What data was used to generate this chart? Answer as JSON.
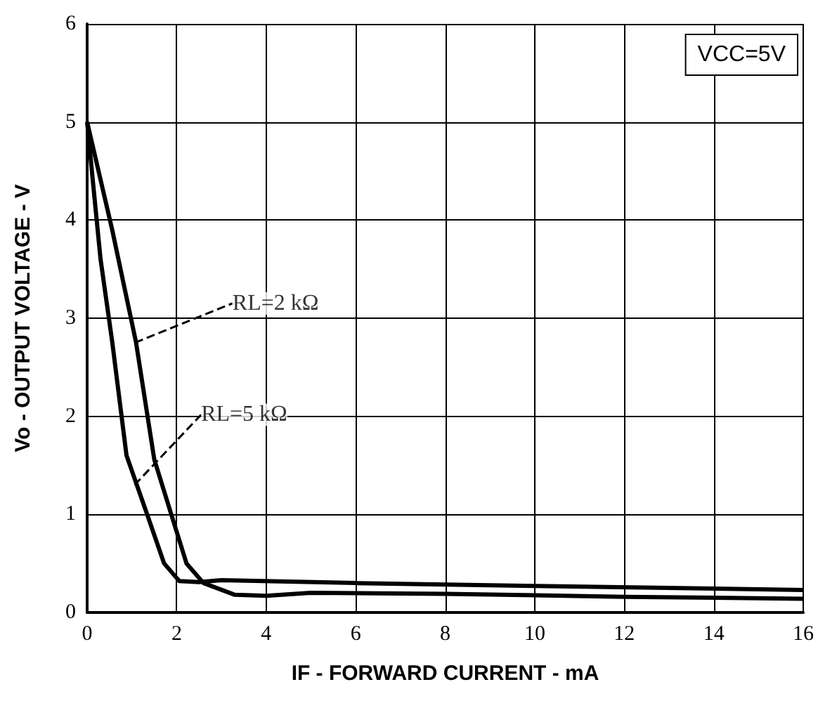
{
  "chart_data": {
    "type": "line",
    "xlabel": "IF - FORWARD CURRENT - mA",
    "ylabel": "Vo - OUTPUT VOLTAGE - V",
    "xlim": [
      0,
      16
    ],
    "xticks": [
      0,
      2,
      4,
      6,
      8,
      10,
      12,
      14,
      16
    ],
    "ylim": [
      0,
      6
    ],
    "yticks": [
      0,
      1,
      2,
      3,
      4,
      5,
      6
    ],
    "grid": true,
    "marker": "none",
    "line_style": "solid",
    "series": [
      {
        "color": "#000000",
        "x": [
          0,
          0.17,
          0.3,
          0.56,
          0.88,
          1.34,
          1.72,
          2.06,
          2.5,
          3,
          6,
          10,
          16
        ],
        "values": [
          5,
          4.2,
          3.6,
          2.76,
          1.6,
          1.0,
          0.5,
          0.32,
          0.31,
          0.33,
          0.3,
          0.27,
          0.23
        ]
      },
      {
        "color": "#000000",
        "x": [
          0,
          0.56,
          1.09,
          1.5,
          1.88,
          2.22,
          2.6,
          3.3,
          4,
          5,
          8,
          12,
          16
        ],
        "values": [
          5,
          3.9,
          2.76,
          1.56,
          1.0,
          0.5,
          0.3,
          0.18,
          0.17,
          0.2,
          0.19,
          0.16,
          0.14
        ]
      }
    ],
    "annotations": [
      {
        "text": "RL=2 kΩ",
        "x": 1.07,
        "y": 2.75
      },
      {
        "text": "RL=5 kΩ",
        "x": 1.06,
        "y": 1.3
      },
      "VCC=5V"
    ]
  }
}
